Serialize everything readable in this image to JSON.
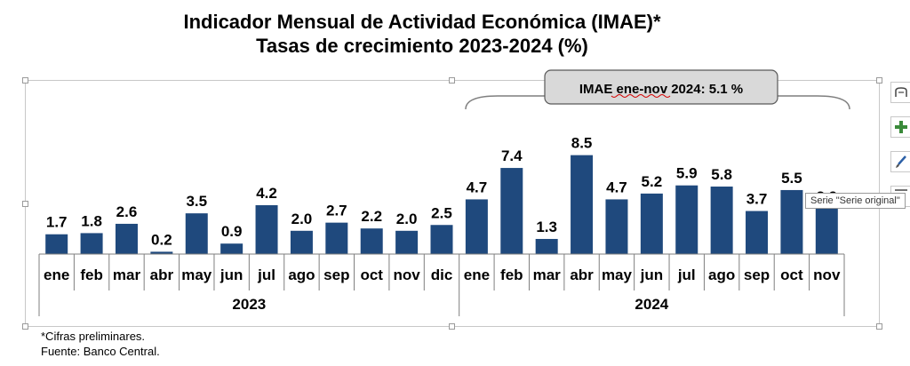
{
  "chart_data": {
    "type": "bar",
    "title": "Indicador Mensual de Actividad Económica (IMAE)*",
    "subtitle": "Tasas de crecimiento 2023-2024 (%)",
    "categories": [
      "ene",
      "feb",
      "mar",
      "abr",
      "may",
      "jun",
      "jul",
      "ago",
      "sep",
      "oct",
      "nov",
      "dic",
      "ene",
      "feb",
      "mar",
      "abr",
      "may",
      "jun",
      "jul",
      "ago",
      "sep",
      "oct",
      "nov"
    ],
    "groups": [
      {
        "label": "2023",
        "count": 12
      },
      {
        "label": "2024",
        "count": 11
      }
    ],
    "values": [
      1.7,
      1.8,
      2.6,
      0.2,
      3.5,
      0.9,
      4.2,
      2.0,
      2.7,
      2.2,
      2.0,
      2.5,
      4.7,
      7.4,
      1.3,
      8.5,
      4.7,
      5.2,
      5.9,
      5.8,
      3.7,
      5.5,
      3.9
    ],
    "value_labels": [
      "1.7",
      "1.8",
      "2.6",
      "0.2",
      "3.5",
      "0.9",
      "4.2",
      "2.0",
      "2.7",
      "2.2",
      "2.0",
      "2.5",
      "4.7",
      "7.4",
      "1.3",
      "8.5",
      "4.7",
      "5.2",
      "5.9",
      "5.8",
      "3.7",
      "5.5",
      "3.9"
    ],
    "ylim": [
      0,
      10
    ],
    "bar_color": "#1F497D",
    "annotation": "IMAE ene-nov 2024: 5.1 %",
    "grid": false,
    "legend": "none"
  },
  "tooltip": "Serie \"Serie original\"",
  "footnotes": {
    "note": "*Cifras preliminares.",
    "source": "Fuente: Banco Central."
  },
  "side_tools": [
    {
      "icon": "chart-styles-icon"
    },
    {
      "icon": "plus-icon"
    },
    {
      "icon": "brush-icon"
    },
    {
      "icon": "filter-icon"
    }
  ]
}
